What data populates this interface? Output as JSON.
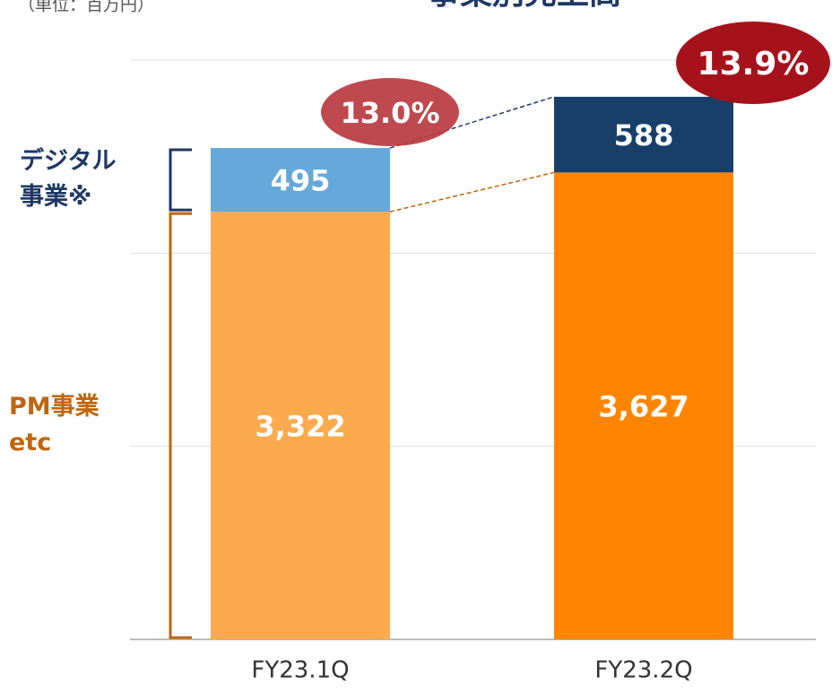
{
  "chart_data": {
    "type": "bar",
    "stacked": true,
    "title": "事業別売上高",
    "unit_label": "（単位：百万円）",
    "categories": [
      "FY23.1Q",
      "FY23.2Q"
    ],
    "series": [
      {
        "name": [
          "PM事業",
          "etc"
        ],
        "label_color": "#c0650c",
        "colors": [
          "#fbaa4d",
          "#ff8500"
        ],
        "values": [
          3322,
          3627
        ],
        "value_labels": [
          "3,322",
          "3,627"
        ]
      },
      {
        "name": [
          "デジタル",
          "事業※"
        ],
        "label_color": "#1f3864",
        "colors": [
          "#66a8d8",
          "#173f6a"
        ],
        "values": [
          495,
          588
        ],
        "value_labels": [
          "495",
          "588"
        ]
      }
    ],
    "share_of": 1,
    "shares": [
      13.0,
      13.9
    ],
    "share_labels": [
      "13.0%",
      "13.9%"
    ],
    "share_colors": [
      "#b8393f",
      "#a6121b"
    ],
    "ylim": [
      0,
      4500
    ],
    "yticks": [
      0,
      1500,
      3000,
      4500
    ],
    "grid": true
  }
}
